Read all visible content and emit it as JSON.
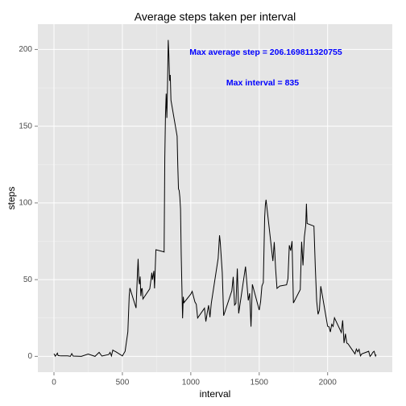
{
  "chart_data": {
    "type": "line",
    "title": "Average steps taken per interval",
    "x_label": "interval",
    "y_label": "steps",
    "annotations": [
      "Max average step = 206.169811320755",
      "Max interval = 835"
    ],
    "x": [
      0,
      10,
      25,
      30,
      50,
      100,
      120,
      130,
      140,
      200,
      250,
      300,
      330,
      350,
      400,
      410,
      420,
      430,
      440,
      450,
      500,
      520,
      540,
      550,
      555,
      600,
      610,
      615,
      620,
      625,
      630,
      635,
      640,
      645,
      650,
      700,
      710,
      715,
      720,
      730,
      735,
      745,
      800,
      805,
      810,
      815,
      820,
      825,
      830,
      835,
      840,
      845,
      850,
      855,
      900,
      905,
      910,
      915,
      920,
      925,
      930,
      935,
      940,
      945,
      950,
      1000,
      1010,
      1020,
      1030,
      1040,
      1050,
      1100,
      1110,
      1120,
      1130,
      1140,
      1150,
      1200,
      1210,
      1215,
      1230,
      1240,
      1300,
      1310,
      1320,
      1330,
      1340,
      1350,
      1400,
      1420,
      1430,
      1440,
      1450,
      1500,
      1510,
      1520,
      1530,
      1540,
      1545,
      1550,
      1600,
      1610,
      1620,
      1630,
      1650,
      1700,
      1710,
      1720,
      1730,
      1740,
      1750,
      1800,
      1810,
      1820,
      1830,
      1840,
      1845,
      1850,
      1900,
      1910,
      1920,
      1930,
      1940,
      1950,
      2000,
      2010,
      2020,
      2030,
      2040,
      2050,
      2100,
      2110,
      2120,
      2130,
      2140,
      2150,
      2200,
      2210,
      2220,
      2230,
      2240,
      2250,
      2300,
      2310,
      2320,
      2330,
      2340,
      2350,
      2355
    ],
    "series": [
      {
        "name": "steps",
        "color": "#000000",
        "values": [
          1.7,
          0.1,
          2.1,
          0.5,
          0.3,
          0.3,
          0,
          1.8,
          0.2,
          0,
          1.5,
          0,
          2.6,
          0.2,
          1.2,
          2.6,
          0.3,
          4.1,
          3.5,
          3.1,
          0.3,
          3.3,
          16,
          39.5,
          44.5,
          31.5,
          53.8,
          63.5,
          50,
          47,
          52,
          39.3,
          44,
          44.2,
          37.4,
          44,
          50.5,
          54.5,
          49.9,
          55.7,
          44.3,
          69.5,
          68.2,
          68,
          129.4,
          157.5,
          171.2,
          155.4,
          177.3,
          206.2,
          195.9,
          179.6,
          183.4,
          167,
          143.5,
          124,
          109.1,
          108.1,
          103.7,
          96,
          66.2,
          45.2,
          24.8,
          38.8,
          35,
          40.6,
          42.4,
          38.9,
          35.5,
          34,
          25,
          31.4,
          22.7,
          28.4,
          33.3,
          25.5,
          34.7,
          63.9,
          78.9,
          74.7,
          54.5,
          26.5,
          42.8,
          51.8,
          33.4,
          34.6,
          57.2,
          28,
          58.5,
          36.5,
          41.1,
          19.4,
          46.9,
          30.2,
          35.5,
          45.9,
          48.1,
          90.8,
          98.7,
          102.1,
          62.1,
          74.5,
          56.9,
          44.3,
          45.8,
          46.6,
          50.6,
          72.4,
          68.9,
          75.1,
          34.8,
          43.5,
          74.7,
          59.3,
          77.8,
          85.3,
          99.5,
          86.6,
          84.9,
          58,
          36.1,
          27.4,
          30.2,
          45.7,
          19.6,
          19.3,
          15.9,
          20.9,
          19.5,
          25.1,
          15.6,
          23.5,
          8.7,
          14.7,
          8.7,
          8.1,
          1.6,
          4.8,
          3,
          4.6,
          0.3,
          1.6,
          3.3,
          0,
          1,
          2.6,
          3.3,
          0.2,
          1.1
        ]
      }
    ],
    "xlim": [
      -117.75,
      2472.75
    ],
    "ylim": [
      -10.3,
      216.5
    ],
    "xticks": [
      0,
      500,
      1000,
      1500,
      2000
    ],
    "yticks": [
      0,
      50,
      100,
      150,
      200
    ],
    "grid": true
  }
}
